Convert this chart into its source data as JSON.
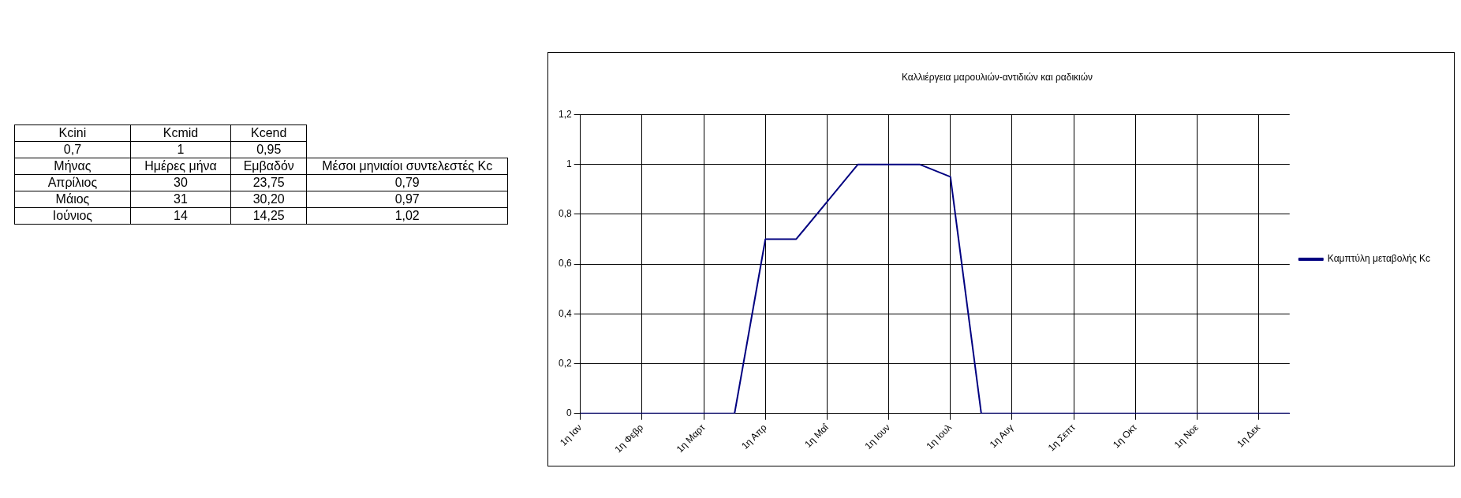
{
  "chart_data": [
    {
      "type": "other",
      "annotations": [
        "Kcini",
        "Kcmid",
        "Kcend",
        "0,7",
        "1",
        "0,95",
        "Μήνας",
        "Ημέρες μήνα",
        "Εμβαδόν",
        "Μέσοι μηνιαίοι συντελεστές Kc",
        "Απρίλιος",
        "30",
        "23,75",
        "0,79",
        "Μάιος",
        "31",
        "30,20",
        "0,97",
        "Ιούνιος",
        "14",
        "14,25",
        "1,02"
      ]
    },
    {
      "type": "line",
      "title": "Καλλιέργεια μαρουλιών-αντιδιών και ραδικιών",
      "categories": [
        "1η Ιαν",
        null,
        "1η Φεβρ",
        null,
        "1η Μαρτ",
        null,
        "1η Απρ",
        null,
        "1η Μαΐ",
        null,
        "1η Ιουν",
        null,
        "1η Ιουλ",
        null,
        "1η Αυγ",
        null,
        "1η Σεπτ",
        null,
        "1η Οκτ",
        null,
        "1η Νοε",
        null,
        "1η Δεκ",
        null
      ],
      "series": [
        {
          "name": "Καμπτύλη μεταβολής Kc",
          "color": "#000080",
          "values": [
            0,
            0,
            0,
            0,
            0,
            0,
            0.7,
            0.7,
            0.85,
            1,
            1,
            1,
            0.95,
            0,
            0,
            0,
            0,
            0,
            0,
            0,
            0,
            0,
            0,
            0
          ]
        }
      ],
      "ylim": [
        0,
        1.2
      ],
      "yticks": [
        {
          "value": 0,
          "label": "0"
        },
        {
          "value": 0.2,
          "label": "0,2"
        },
        {
          "value": 0.4,
          "label": "0,4"
        },
        {
          "value": 0.6,
          "label": "0,6"
        },
        {
          "value": 0.8,
          "label": "0,8"
        },
        {
          "value": 1,
          "label": "1"
        },
        {
          "value": 1.2,
          "label": "1,2"
        }
      ],
      "grid": true,
      "legend": "right",
      "marker": "none",
      "line_style": "solid"
    }
  ]
}
